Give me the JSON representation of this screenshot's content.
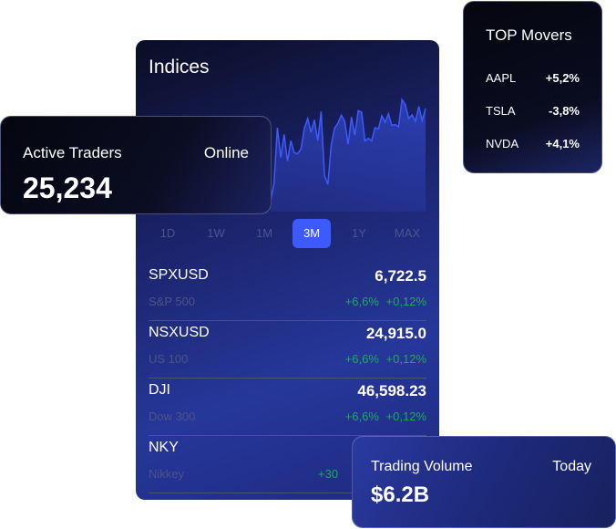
{
  "indices": {
    "title": "Indices",
    "sparkline": [
      40,
      100,
      302,
      195,
      278,
      182,
      255,
      212,
      208,
      225,
      300,
      335,
      285,
      330,
      255,
      360,
      130,
      98,
      240,
      300,
      318,
      347,
      325,
      242,
      340,
      275,
      363,
      358,
      255,
      263,
      255,
      302,
      298,
      345,
      322,
      352,
      310,
      313,
      305,
      403,
      385,
      335,
      348,
      325,
      378,
      328,
      370
    ],
    "line_color": "#3d5afe",
    "periods": [
      "1D",
      "1W",
      "1M",
      "3M",
      "1Y",
      "MAX"
    ],
    "active_period": "3M",
    "rows": [
      {
        "symbol": "SPXUSD",
        "name": "S&P 500",
        "price": "6,722.5",
        "change": "+6,6%",
        "change_pct": "+0,12%"
      },
      {
        "symbol": "NSXUSD",
        "name": "US 100",
        "price": "24,915.0",
        "change": "+6,6%",
        "change_pct": "+0,12%"
      },
      {
        "symbol": "DJI",
        "name": "Dow 300",
        "price": "46,598.23",
        "change": "+6,6%",
        "change_pct": "+0,12%"
      },
      {
        "symbol": "NKY",
        "name": "Nikkey",
        "price": "",
        "change": "+30",
        "change_pct": ""
      }
    ]
  },
  "traders": {
    "label": "Active Traders",
    "status": "Online",
    "value": "25,234"
  },
  "movers": {
    "title": "TOP Movers",
    "items": [
      {
        "symbol": "AAPL",
        "change": "+5,2%"
      },
      {
        "symbol": "TSLA",
        "change": "-3,8%"
      },
      {
        "symbol": "NVDA",
        "change": "+4,1%"
      }
    ]
  },
  "volume": {
    "label": "Trading Volume",
    "period": "Today",
    "value": "$6.2B"
  },
  "colors": {
    "accent": "#3d5afe",
    "positive": "#1faa5c"
  }
}
